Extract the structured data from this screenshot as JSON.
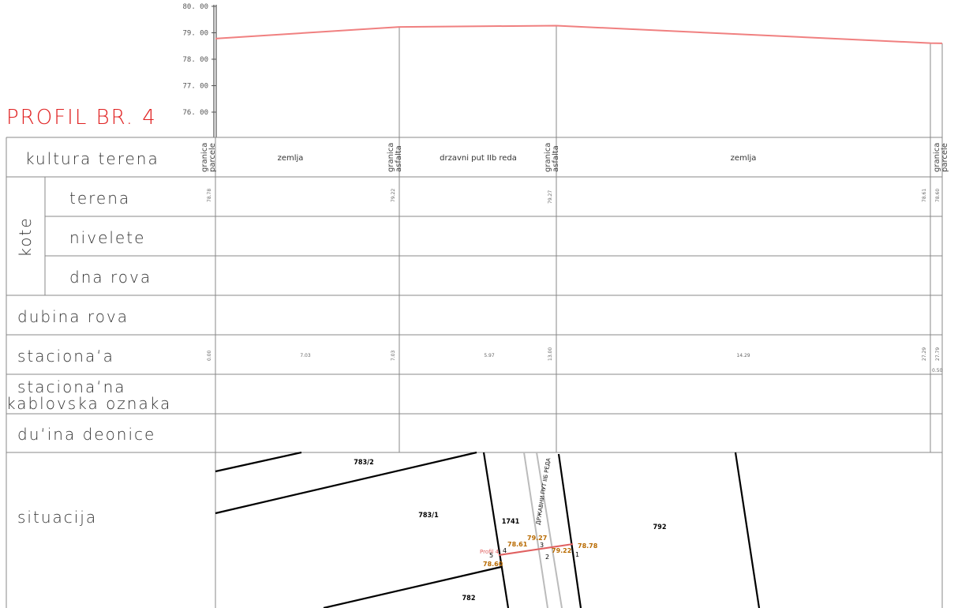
{
  "title": "PROFIL BR. 4",
  "profile_axis": {
    "ticks": [
      "80. 00",
      "79. 00",
      "78. 00",
      "77. 00",
      "76. 00"
    ],
    "terrain_color": "#f08080"
  },
  "row_labels": {
    "kultura": "kultura terena",
    "kote": "kote",
    "terena": "terena",
    "nivelete": "nivelete",
    "dna_rova": "dna rova",
    "dubina_rova": "dubina rova",
    "stacionaza": "staciona‘a",
    "stacionazna_line1": "staciona‘na",
    "stacionazna_line2": "kablovska oznaka",
    "duzina": "du‘ina deonice",
    "situacija": "situacija"
  },
  "boundaries": [
    {
      "line1": "granica",
      "line2": "parcele"
    },
    {
      "line1": "granica",
      "line2": "asfalta"
    },
    {
      "line1": "granica",
      "line2": "asfalta"
    },
    {
      "line1": "granica",
      "line2": "parcele"
    }
  ],
  "segments": [
    "zemlja",
    "drzavni put IIb reda",
    "zemlja"
  ],
  "terrain_elevations": [
    "78.78",
    "79.22",
    "79.27",
    "78.61",
    "78.60"
  ],
  "stations": [
    "0.00",
    "7.03",
    "13.00",
    "27.29",
    "27.79"
  ],
  "segment_lengths": [
    "7.03",
    "5.97",
    "14.29"
  ],
  "offset_label": "0.50",
  "chart_data": {
    "type": "line",
    "x": [
      0.0,
      7.03,
      13.0,
      27.29,
      27.79
    ],
    "y": [
      78.78,
      79.22,
      79.27,
      78.61,
      78.6
    ],
    "ylim": [
      76,
      80
    ],
    "grid": false
  },
  "situation": {
    "parcels": [
      "783/2",
      "783/1",
      "1741",
      "792",
      "782"
    ],
    "road_label": "ДРЖАВНИ ПУТ IIБ РЕДА",
    "profile_label": "Profil 4",
    "points": [
      {
        "num": "1",
        "elev": "78.78"
      },
      {
        "num": "2",
        "elev": "79.22"
      },
      {
        "num": "3",
        "elev": "79.27"
      },
      {
        "num": "4",
        "elev": "78.61"
      },
      {
        "num": "5",
        "elev": "78.60"
      }
    ],
    "profile_color": "#e06060",
    "point_color": "#b86a00"
  }
}
